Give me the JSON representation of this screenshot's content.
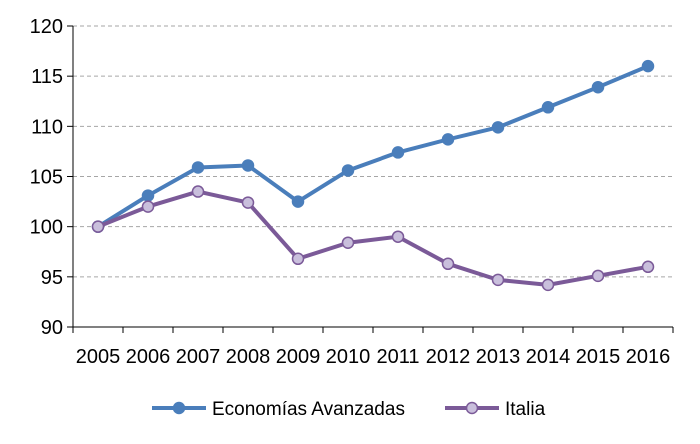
{
  "chart_data": {
    "type": "line",
    "x": [
      "2005",
      "2006",
      "2007",
      "2008",
      "2009",
      "2010",
      "2011",
      "2012",
      "2013",
      "2014",
      "2015",
      "2016"
    ],
    "series": [
      {
        "name": "Economías Avanzadas",
        "color": "#4a7ebb",
        "marker_fill": "#4a7ebb",
        "values": [
          100,
          103.1,
          105.9,
          106.1,
          102.5,
          105.6,
          107.4,
          108.7,
          109.9,
          111.9,
          113.9,
          116.0
        ]
      },
      {
        "name": "Italia",
        "color": "#7b5a98",
        "marker_fill": "#c9bfdc",
        "values": [
          100,
          102.0,
          103.5,
          102.4,
          96.8,
          98.4,
          99.0,
          96.3,
          94.7,
          94.2,
          95.1,
          96.0
        ]
      }
    ],
    "y_ticks": [
      "90",
      "95",
      "100",
      "105",
      "110",
      "115",
      "120"
    ],
    "ylim": [
      90,
      120
    ],
    "grid": "horizontal-dashed",
    "legend_position": "bottom"
  }
}
